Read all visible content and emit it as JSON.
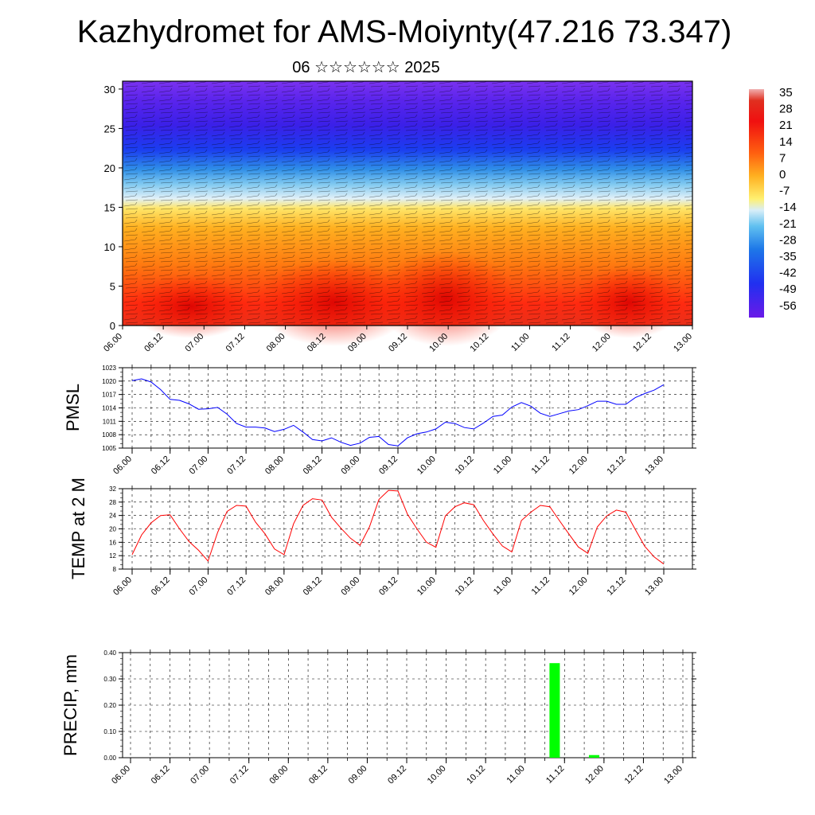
{
  "title": "Kazhydromet for AMS-Moiynty(47.216 73.347)",
  "subtitle": "06 ☆☆☆☆☆☆ 2025",
  "time_labels": [
    "06.00",
    "06.12",
    "07.00",
    "07.12",
    "08.00",
    "08.12",
    "09.00",
    "09.12",
    "10.00",
    "10.12",
    "11.00",
    "11.12",
    "12.00",
    "12.12",
    "13.00"
  ],
  "colors": {
    "pmsl_line": "#0000ff",
    "temp_line": "#ff0000",
    "precip_bar": "#00ff00",
    "grid": "#000000"
  },
  "chart_data": [
    {
      "type": "heatmap",
      "name": "temperature-wind-cross-section",
      "y_ticks": [
        0,
        5,
        10,
        15,
        20,
        25,
        30
      ],
      "ylim": [
        0,
        31
      ],
      "colorbar_labels": [
        "35",
        "28",
        "21",
        "14",
        "7",
        "0",
        "-7",
        "-14",
        "-21",
        "-28",
        "-35",
        "-42",
        "-49",
        "-56"
      ],
      "colorbar_range": [
        -60,
        38
      ]
    },
    {
      "type": "line",
      "name": "pmsl",
      "ylabel": "PMSL",
      "y_ticks": [
        1005,
        1008,
        1011,
        1014,
        1017,
        1020,
        1023
      ],
      "ylim": [
        1005,
        1023
      ],
      "x_hours": [
        0,
        3,
        6,
        9,
        12,
        15,
        18,
        21,
        24,
        27,
        30,
        33,
        36,
        39,
        42,
        45,
        48,
        51,
        54,
        57,
        60,
        63,
        66,
        69,
        72,
        75,
        78,
        81,
        84,
        87,
        90,
        93,
        96,
        99,
        102,
        105,
        108,
        111,
        114,
        117,
        120,
        123,
        126,
        129,
        132,
        135,
        138,
        141,
        144,
        147,
        150,
        153,
        156,
        159,
        162,
        165,
        168
      ],
      "values": [
        1020.1,
        1020.5,
        1019.8,
        1018.1,
        1015.9,
        1015.7,
        1014.9,
        1013.7,
        1013.8,
        1014.1,
        1012.6,
        1010.5,
        1009.7,
        1009.7,
        1009.5,
        1008.7,
        1009.2,
        1010.1,
        1008.6,
        1006.9,
        1006.6,
        1007.3,
        1006.3,
        1005.6,
        1006.1,
        1007.4,
        1007.6,
        1005.8,
        1005.5,
        1007.3,
        1008.2,
        1008.6,
        1009.3,
        1010.8,
        1010.5,
        1009.6,
        1009.3,
        1010.6,
        1012.1,
        1012.4,
        1014.2,
        1015.2,
        1014.4,
        1012.8,
        1012.1,
        1012.7,
        1013.3,
        1013.6,
        1014.5,
        1015.5,
        1015.5,
        1014.8,
        1014.8,
        1016.3,
        1017.2,
        1018.0,
        1019.2
      ]
    },
    {
      "type": "line",
      "name": "temp-2m",
      "ylabel": "TEMP at 2 M",
      "y_ticks": [
        8,
        12,
        16,
        20,
        24,
        28,
        32
      ],
      "ylim": [
        8,
        32
      ],
      "x_hours": [
        0,
        3,
        6,
        9,
        12,
        15,
        18,
        21,
        24,
        27,
        30,
        33,
        36,
        39,
        42,
        45,
        48,
        51,
        54,
        57,
        60,
        63,
        66,
        69,
        72,
        75,
        78,
        81,
        84,
        87,
        90,
        93,
        96,
        99,
        102,
        105,
        108,
        111,
        114,
        117,
        120,
        123,
        126,
        129,
        132,
        135,
        138,
        141,
        144,
        147,
        150,
        153,
        156,
        159,
        162,
        165,
        168
      ],
      "values": [
        12.3,
        18.2,
        21.8,
        24.0,
        24.2,
        20.0,
        16.2,
        13.6,
        10.4,
        18.9,
        25.2,
        27.0,
        26.8,
        22.0,
        18.5,
        14.0,
        12.3,
        21.5,
        27.0,
        29.0,
        28.6,
        23.5,
        20.2,
        17.2,
        15.1,
        20.6,
        28.8,
        31.5,
        31.3,
        24.4,
        20.0,
        16.0,
        14.5,
        23.9,
        26.6,
        27.8,
        27.2,
        22.5,
        18.5,
        14.9,
        13.1,
        22.5,
        25.0,
        27.0,
        26.6,
        22.5,
        18.5,
        14.6,
        12.7,
        20.6,
        23.9,
        25.6,
        25.0,
        19.8,
        14.8,
        11.6,
        9.5
      ]
    },
    {
      "type": "bar",
      "name": "precip",
      "ylabel": "PRECIP, mm",
      "y_ticks": [
        "0.00",
        "0.10",
        "0.20",
        "0.30",
        "0.40"
      ],
      "ylim": [
        0,
        0.4
      ],
      "bars": [
        {
          "hour": 129,
          "value": 0.36
        },
        {
          "hour": 141,
          "value": 0.01
        }
      ]
    }
  ]
}
